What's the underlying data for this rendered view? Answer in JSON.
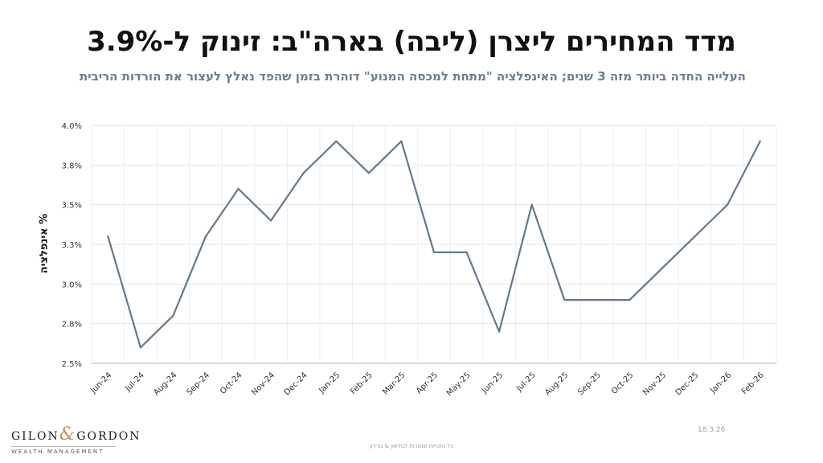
{
  "header": {
    "title": "מדד המחירים ליצרן (ליבה) בארה\"ב: זינוק ל-3.9%",
    "subtitle": "העלייה החדה ביותר מזה 3 שנים; האינפלציה \"מתחת למכסה המנוע\" דוהרת בזמן שהפד נאלץ לעצור את הורדות הריבית"
  },
  "chart_data": {
    "type": "line",
    "categories": [
      "Jun-24",
      "Jul-24",
      "Aug-24",
      "Sep-24",
      "Oct-24",
      "Nov-24",
      "Dec-24",
      "Jan-25",
      "Feb-25",
      "Mar-25",
      "Apr-25",
      "May-25",
      "Jun-25",
      "Jul-25",
      "Aug-25",
      "Sep-25",
      "Oct-25",
      "Nov-25",
      "Dec-25",
      "Jan-26",
      "Feb-26"
    ],
    "series": [
      {
        "values": [
          3.3,
          2.6,
          2.8,
          3.3,
          3.6,
          3.4,
          3.7,
          3.9,
          3.7,
          3.9,
          3.2,
          3.2,
          2.7,
          3.5,
          2.9,
          2.9,
          2.9,
          3.1,
          3.3,
          3.5,
          3.9
        ]
      }
    ],
    "ylabel": "% אינפלציה",
    "xlabel": "",
    "ylim": [
      2.5,
      4.0
    ],
    "yticks": [
      "2.5%",
      "2.8%",
      "3.0%",
      "3.3%",
      "3.5%",
      "3.8%",
      "4.0%"
    ],
    "grid": true,
    "color": "#66788a"
  },
  "footer": {
    "date": "18.3.26",
    "copyright": "כל הזכויות שמורות לגילאון & גורדון"
  },
  "logo": {
    "name_left": "GILON",
    "ampersand": "&",
    "name_right": "GORDON",
    "tagline": "WEALTH MANAGEMENT"
  }
}
